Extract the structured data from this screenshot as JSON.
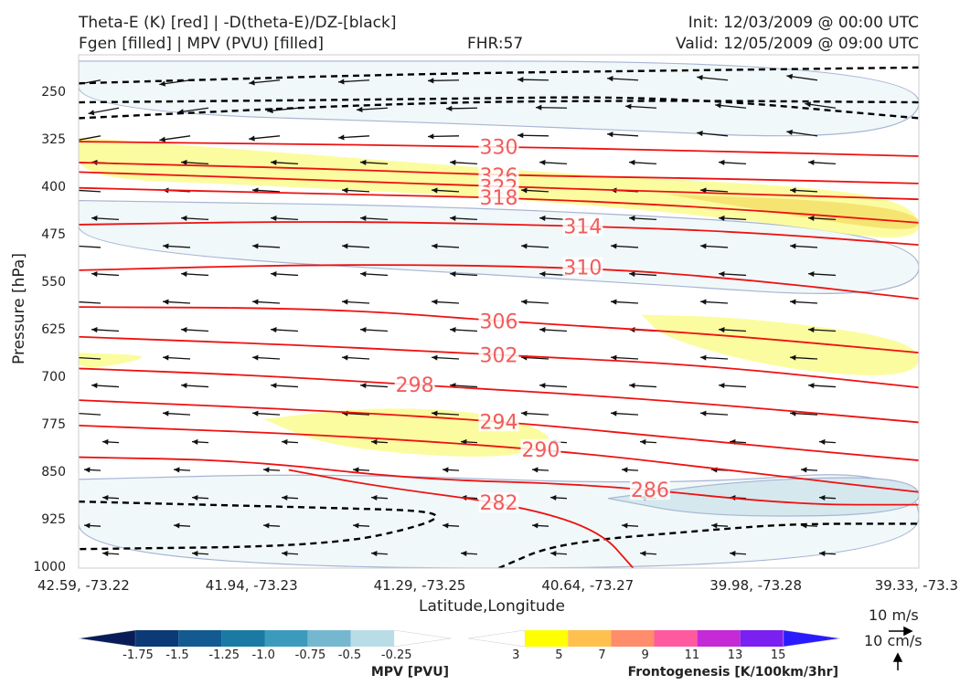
{
  "header": {
    "title_line1": "Theta-E (K) [red] | -D(theta-E)/DZ-[black]",
    "title_line2": "Fgen [filled] | MPV (PVU) [filled]",
    "fhr": "FHR:57",
    "init": "Init: 12/03/2009 @ 00:00 UTC",
    "valid": "Valid: 12/05/2009 @ 09:00 UTC"
  },
  "chart_data": {
    "type": "cross-section",
    "xlabel": "Latitude,Longitude",
    "ylabel": "Pressure [hPa]",
    "x_ticks": [
      "42.59, -73.22",
      "41.94, -73.23",
      "41.29, -73.25",
      "40.64, -73.27",
      "39.98, -73.28",
      "39.33, -73.3"
    ],
    "y_ticks": [
      250,
      325,
      400,
      475,
      550,
      625,
      700,
      775,
      850,
      925,
      1000
    ],
    "ylim": [
      1000,
      190
    ],
    "theta_e_contours": [
      {
        "label": "330",
        "points": [
          [
            0,
            327
          ],
          [
            0.2,
            330
          ],
          [
            0.45,
            334
          ],
          [
            0.7,
            340
          ],
          [
            1,
            350
          ]
        ]
      },
      {
        "label": "326",
        "points": [
          [
            0,
            360
          ],
          [
            0.3,
            370
          ],
          [
            0.5,
            380
          ],
          [
            0.75,
            385
          ],
          [
            1,
            393
          ]
        ]
      },
      {
        "label": "322",
        "points": [
          [
            0,
            375
          ],
          [
            0.3,
            388
          ],
          [
            0.5,
            398
          ],
          [
            0.75,
            408
          ],
          [
            1,
            418
          ]
        ]
      },
      {
        "label": "318",
        "points": [
          [
            0,
            400
          ],
          [
            0.3,
            410
          ],
          [
            0.5,
            415
          ],
          [
            0.75,
            430
          ],
          [
            1,
            455
          ]
        ]
      },
      {
        "label": "314",
        "points": [
          [
            0,
            458
          ],
          [
            0.3,
            452
          ],
          [
            0.6,
            460
          ],
          [
            0.8,
            470
          ],
          [
            1,
            490
          ]
        ]
      },
      {
        "label": "310",
        "points": [
          [
            0,
            530
          ],
          [
            0.3,
            520
          ],
          [
            0.6,
            525
          ],
          [
            0.8,
            545
          ],
          [
            1,
            575
          ]
        ]
      },
      {
        "label": "306",
        "points": [
          [
            0,
            588
          ],
          [
            0.3,
            590
          ],
          [
            0.52,
            612
          ],
          [
            0.75,
            630
          ],
          [
            1,
            660
          ]
        ]
      },
      {
        "label": "302",
        "points": [
          [
            0,
            635
          ],
          [
            0.3,
            650
          ],
          [
            0.52,
            665
          ],
          [
            0.75,
            680
          ],
          [
            1,
            715
          ]
        ]
      },
      {
        "label": "298",
        "points": [
          [
            0,
            685
          ],
          [
            0.2,
            695
          ],
          [
            0.42,
            712
          ],
          [
            0.7,
            735
          ],
          [
            1,
            770
          ]
        ]
      },
      {
        "label": "294",
        "points": [
          [
            0,
            735
          ],
          [
            0.3,
            752
          ],
          [
            0.52,
            770
          ],
          [
            0.75,
            800
          ],
          [
            1,
            830
          ]
        ]
      },
      {
        "label": "290",
        "points": [
          [
            0,
            775
          ],
          [
            0.3,
            790
          ],
          [
            0.58,
            815
          ],
          [
            0.8,
            850
          ],
          [
            1,
            880
          ]
        ]
      },
      {
        "label": "286",
        "points": [
          [
            0,
            825
          ],
          [
            0.2,
            830
          ],
          [
            0.4,
            860
          ],
          [
            0.62,
            868
          ],
          [
            0.85,
            900
          ],
          [
            1,
            900
          ]
        ]
      },
      {
        "label": "282",
        "points": [
          [
            0.25,
            845
          ],
          [
            0.35,
            870
          ],
          [
            0.52,
            900
          ],
          [
            0.62,
            940
          ],
          [
            0.66,
            1000
          ]
        ]
      }
    ],
    "stability_contours_dashed": [
      [
        [
          0,
          290
        ],
        [
          0.4,
          265
        ],
        [
          0.7,
          262
        ],
        [
          1,
          265
        ]
      ],
      [
        [
          0,
          235
        ],
        [
          0.4,
          220
        ],
        [
          0.7,
          215
        ],
        [
          1,
          210
        ]
      ],
      [
        [
          0,
          265
        ],
        [
          0.4,
          260
        ],
        [
          0.7,
          255
        ],
        [
          1,
          290
        ]
      ],
      [
        [
          0,
          895
        ],
        [
          0.3,
          905
        ],
        [
          0.43,
          910
        ],
        [
          0.42,
          930
        ],
        [
          0.3,
          965
        ],
        [
          0,
          970
        ]
      ],
      [
        [
          0.5,
          1000
        ],
        [
          0.57,
          960
        ],
        [
          0.75,
          940
        ],
        [
          0.85,
          930
        ],
        [
          1,
          930
        ]
      ]
    ],
    "fgen_regions": [
      {
        "level": "3",
        "points": [
          [
            0,
            320
          ],
          [
            0.2,
            340
          ],
          [
            0.6,
            380
          ],
          [
            0.9,
            400
          ],
          [
            1,
            430
          ],
          [
            1,
            490
          ],
          [
            0.8,
            450
          ],
          [
            0.5,
            415
          ],
          [
            0.2,
            395
          ],
          [
            0,
            385
          ]
        ]
      },
      {
        "level": "3",
        "points": [
          [
            0.67,
            600
          ],
          [
            0.8,
            605
          ],
          [
            1,
            640
          ],
          [
            1,
            700
          ],
          [
            0.85,
            690
          ],
          [
            0.7,
            640
          ]
        ]
      },
      {
        "level": "3",
        "points": [
          [
            0.22,
            765
          ],
          [
            0.35,
            745
          ],
          [
            0.5,
            755
          ],
          [
            0.58,
            800
          ],
          [
            0.5,
            830
          ],
          [
            0.3,
            810
          ]
        ]
      },
      {
        "level": "3",
        "points": [
          [
            0,
            660
          ],
          [
            0.1,
            665
          ],
          [
            0,
            690
          ]
        ]
      },
      {
        "level": "5",
        "points": [
          [
            0.7,
            410
          ],
          [
            0.9,
            420
          ],
          [
            1,
            440
          ],
          [
            1,
            470
          ],
          [
            0.9,
            455
          ]
        ]
      }
    ],
    "mpv_regions": [
      {
        "level": "-0.25",
        "points": [
          [
            0,
            200
          ],
          [
            1,
            200
          ],
          [
            1,
            330
          ],
          [
            0.5,
            300
          ],
          [
            0,
            280
          ]
        ]
      },
      {
        "level": "-0.25",
        "points": [
          [
            0,
            420
          ],
          [
            0.5,
            430
          ],
          [
            1,
            470
          ],
          [
            1,
            580
          ],
          [
            0.6,
            545
          ],
          [
            0,
            500
          ]
        ]
      },
      {
        "level": "-0.25",
        "points": [
          [
            0,
            860
          ],
          [
            0.3,
            850
          ],
          [
            0.7,
            870
          ],
          [
            1,
            840
          ],
          [
            1,
            1000
          ],
          [
            0,
            1000
          ]
        ]
      },
      {
        "level": "-0.5",
        "points": [
          [
            0.63,
            890
          ],
          [
            0.8,
            860
          ],
          [
            1,
            855
          ],
          [
            1,
            915
          ],
          [
            0.75,
            920
          ]
        ]
      }
    ],
    "wind_reference": {
      "speed_label": "10 m/s",
      "vertical_label": "10 cm/s"
    },
    "colorbars": [
      {
        "title": "MPV [PVU]",
        "ticks": [
          "-1.75",
          "-1.5",
          "-1.25",
          "-1.0",
          "-0.75",
          "-0.5",
          "-0.25"
        ],
        "colors": [
          "#081d58",
          "#0c3a76",
          "#125a8f",
          "#1a7aa3",
          "#3c9bbd",
          "#76b7d0",
          "#b9dde6",
          "#ffffff"
        ]
      },
      {
        "title": "Frontogenesis [K/100km/3hr]",
        "ticks": [
          "3",
          "5",
          "7",
          "9",
          "11",
          "13",
          "15"
        ],
        "colors": [
          "#ffffff",
          "#ffff00",
          "#ffc04d",
          "#ff8c6a",
          "#ff5aa0",
          "#c42ad6",
          "#7a20f0",
          "#2b1cff"
        ]
      }
    ]
  }
}
